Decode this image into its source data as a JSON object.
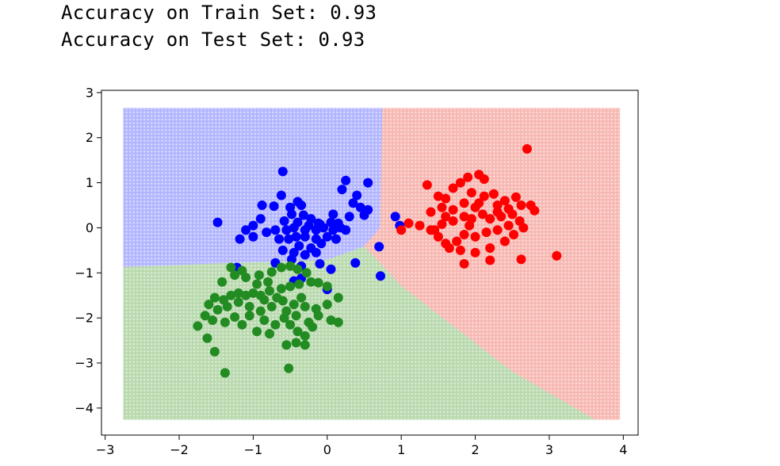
{
  "output": {
    "train_line": "Accuracy on Train Set: 0.93",
    "test_line": "Accuracy on Test Set: 0.93"
  },
  "chart_data": {
    "type": "scatter",
    "title": "",
    "xlabel": "",
    "ylabel": "",
    "xlim": [
      -3.05,
      4.2
    ],
    "ylim": [
      -4.6,
      3.05
    ],
    "grid": false,
    "legend": "none",
    "x_ticks": [
      -3,
      -2,
      -1,
      0,
      1,
      2,
      3,
      4
    ],
    "y_ticks": [
      -4,
      -3,
      -2,
      -1,
      0,
      1,
      2,
      3
    ],
    "x_tick_labels": [
      "−3",
      "−2",
      "−1",
      "0",
      "1",
      "2",
      "3",
      "4"
    ],
    "y_tick_labels": [
      "−4",
      "−3",
      "−2",
      "−1",
      "0",
      "1",
      "2",
      "3"
    ],
    "decision_regions": {
      "grid_x_range": [
        -2.75,
        3.95
      ],
      "grid_y_range": [
        -4.25,
        2.65
      ],
      "colors": {
        "blue": "#b3b6ff",
        "red": "#f7b8b2",
        "green": "#b9d9ae"
      },
      "blue_region": [
        [
          -2.75,
          2.65
        ],
        [
          0.75,
          2.65
        ],
        [
          0.72,
          0.0
        ],
        [
          0.5,
          -0.42
        ],
        [
          0.0,
          -0.72
        ],
        [
          -1.5,
          -0.8
        ],
        [
          -2.75,
          -0.88
        ]
      ],
      "red_region": [
        [
          0.75,
          2.65
        ],
        [
          3.95,
          2.65
        ],
        [
          3.95,
          -4.25
        ],
        [
          3.6,
          -4.25
        ],
        [
          2.5,
          -3.2
        ],
        [
          1.0,
          -1.3
        ],
        [
          0.5,
          -0.42
        ],
        [
          0.72,
          0.0
        ]
      ],
      "green_region": [
        [
          -2.75,
          -0.88
        ],
        [
          -1.5,
          -0.8
        ],
        [
          0.0,
          -0.72
        ],
        [
          0.5,
          -0.42
        ],
        [
          1.0,
          -1.3
        ],
        [
          2.5,
          -3.2
        ],
        [
          3.6,
          -4.25
        ],
        [
          -2.75,
          -4.25
        ]
      ]
    },
    "series": [
      {
        "color": "#0000ff",
        "points": [
          [
            -1.48,
            0.12
          ],
          [
            -0.6,
            1.25
          ],
          [
            -0.62,
            0.72
          ],
          [
            -0.4,
            0.58
          ],
          [
            -0.72,
            0.48
          ],
          [
            -0.48,
            0.3
          ],
          [
            -0.32,
            0.28
          ],
          [
            -0.22,
            0.2
          ],
          [
            -0.58,
            0.15
          ],
          [
            -0.4,
            0.12
          ],
          [
            -0.12,
            0.1
          ],
          [
            0.05,
            0.12
          ],
          [
            0.15,
            0.1
          ],
          [
            0.3,
            0.25
          ],
          [
            0.45,
            0.45
          ],
          [
            0.55,
            1.0
          ],
          [
            0.25,
            1.05
          ],
          [
            0.2,
            0.85
          ],
          [
            0.4,
            0.72
          ],
          [
            0.35,
            0.55
          ],
          [
            0.55,
            0.4
          ],
          [
            0.5,
            0.28
          ],
          [
            -0.88,
            0.5
          ],
          [
            -0.9,
            0.2
          ],
          [
            -1.0,
            0.05
          ],
          [
            -1.1,
            -0.05
          ],
          [
            -1.18,
            -0.25
          ],
          [
            -1.0,
            -0.2
          ],
          [
            -0.82,
            -0.1
          ],
          [
            -0.7,
            -0.05
          ],
          [
            -0.55,
            -0.05
          ],
          [
            -0.45,
            0.0
          ],
          [
            -0.3,
            -0.05
          ],
          [
            -0.15,
            -0.05
          ],
          [
            -0.05,
            0.0
          ],
          [
            0.08,
            -0.05
          ],
          [
            0.18,
            0.0
          ],
          [
            0.25,
            -0.05
          ],
          [
            -0.65,
            -0.25
          ],
          [
            -0.52,
            -0.25
          ],
          [
            -0.42,
            -0.2
          ],
          [
            -0.3,
            -0.2
          ],
          [
            -0.15,
            -0.25
          ],
          [
            0.0,
            -0.2
          ],
          [
            0.12,
            -0.25
          ],
          [
            -0.38,
            -0.4
          ],
          [
            -0.22,
            -0.45
          ],
          [
            -0.08,
            -0.35
          ],
          [
            -0.6,
            -0.5
          ],
          [
            -0.45,
            -0.55
          ],
          [
            -0.3,
            -0.6
          ],
          [
            -0.15,
            -0.55
          ],
          [
            -0.7,
            -0.78
          ],
          [
            -0.48,
            -0.7
          ],
          [
            -0.35,
            -0.85
          ],
          [
            -0.1,
            -0.8
          ],
          [
            0.05,
            -0.92
          ],
          [
            0.38,
            -0.78
          ],
          [
            0.72,
            -1.07
          ],
          [
            -1.22,
            -0.88
          ],
          [
            -0.35,
            -1.12
          ],
          [
            -0.45,
            -1.18
          ],
          [
            0.0,
            -1.37
          ],
          [
            0.92,
            0.25
          ],
          [
            0.98,
            0.05
          ],
          [
            0.7,
            -0.42
          ],
          [
            -0.25,
            0.05
          ],
          [
            -0.5,
            0.45
          ],
          [
            -0.35,
            0.5
          ],
          [
            -0.1,
            0.08
          ],
          [
            0.08,
            0.3
          ]
        ]
      },
      {
        "color": "#ff0000",
        "points": [
          [
            2.7,
            1.75
          ],
          [
            1.35,
            0.95
          ],
          [
            1.5,
            0.7
          ],
          [
            1.6,
            0.65
          ],
          [
            1.7,
            0.88
          ],
          [
            1.8,
            1.0
          ],
          [
            1.9,
            1.12
          ],
          [
            2.05,
            1.18
          ],
          [
            2.12,
            1.08
          ],
          [
            1.95,
            0.78
          ],
          [
            2.12,
            0.7
          ],
          [
            2.25,
            0.75
          ],
          [
            2.4,
            0.6
          ],
          [
            2.55,
            0.68
          ],
          [
            2.62,
            0.5
          ],
          [
            2.75,
            0.5
          ],
          [
            2.8,
            0.38
          ],
          [
            2.3,
            0.5
          ],
          [
            2.0,
            0.45
          ],
          [
            1.85,
            0.55
          ],
          [
            1.7,
            0.4
          ],
          [
            1.55,
            0.45
          ],
          [
            1.4,
            0.35
          ],
          [
            1.25,
            0.05
          ],
          [
            1.1,
            0.1
          ],
          [
            1.0,
            -0.05
          ],
          [
            1.4,
            -0.05
          ],
          [
            1.55,
            0.08
          ],
          [
            1.7,
            0.15
          ],
          [
            1.85,
            0.25
          ],
          [
            1.95,
            0.2
          ],
          [
            2.1,
            0.3
          ],
          [
            2.2,
            0.2
          ],
          [
            2.35,
            0.25
          ],
          [
            2.5,
            0.3
          ],
          [
            2.6,
            0.15
          ],
          [
            2.45,
            0.05
          ],
          [
            2.3,
            -0.05
          ],
          [
            2.15,
            -0.1
          ],
          [
            2.0,
            -0.2
          ],
          [
            1.85,
            -0.15
          ],
          [
            1.75,
            -0.3
          ],
          [
            1.6,
            -0.35
          ],
          [
            1.5,
            -0.2
          ],
          [
            1.45,
            -0.05
          ],
          [
            1.65,
            -0.45
          ],
          [
            1.8,
            -0.5
          ],
          [
            2.0,
            -0.55
          ],
          [
            2.2,
            -0.45
          ],
          [
            2.4,
            -0.3
          ],
          [
            2.52,
            -0.15
          ],
          [
            2.65,
            0.0
          ],
          [
            2.2,
            -0.72
          ],
          [
            2.62,
            -0.7
          ],
          [
            3.1,
            -0.62
          ],
          [
            1.85,
            -0.8
          ],
          [
            1.92,
            0.05
          ],
          [
            2.05,
            0.55
          ],
          [
            2.3,
            0.35
          ],
          [
            1.6,
            0.25
          ],
          [
            2.45,
            0.42
          ]
        ]
      },
      {
        "color": "#228b22",
        "points": [
          [
            -1.38,
            -3.22
          ],
          [
            -1.52,
            -2.75
          ],
          [
            -1.62,
            -2.45
          ],
          [
            -1.75,
            -2.18
          ],
          [
            -1.65,
            -1.95
          ],
          [
            -1.48,
            -1.82
          ],
          [
            -1.6,
            -1.7
          ],
          [
            -1.52,
            -1.55
          ],
          [
            -1.4,
            -1.6
          ],
          [
            -1.3,
            -1.5
          ],
          [
            -1.2,
            -1.45
          ],
          [
            -1.1,
            -1.5
          ],
          [
            -1.0,
            -1.45
          ],
          [
            -0.9,
            -1.5
          ],
          [
            -0.78,
            -1.4
          ],
          [
            -0.62,
            -1.35
          ],
          [
            -0.5,
            -1.3
          ],
          [
            -0.38,
            -1.25
          ],
          [
            -0.22,
            -1.2
          ],
          [
            -0.12,
            -1.22
          ],
          [
            0.0,
            -1.3
          ],
          [
            -1.42,
            -1.2
          ],
          [
            -1.25,
            -1.05
          ],
          [
            -1.1,
            -1.1
          ],
          [
            -0.92,
            -1.05
          ],
          [
            -0.75,
            -0.98
          ],
          [
            -0.62,
            -0.88
          ],
          [
            -0.5,
            -0.85
          ],
          [
            -0.4,
            -0.92
          ],
          [
            -0.28,
            -1.0
          ],
          [
            -1.3,
            -0.88
          ],
          [
            -1.15,
            -0.95
          ],
          [
            -0.95,
            -1.25
          ],
          [
            -0.8,
            -1.2
          ],
          [
            -1.35,
            -1.75
          ],
          [
            -1.2,
            -1.65
          ],
          [
            -1.05,
            -1.75
          ],
          [
            -0.9,
            -1.85
          ],
          [
            -0.75,
            -1.75
          ],
          [
            -0.6,
            -1.62
          ],
          [
            -0.45,
            -1.7
          ],
          [
            -0.3,
            -1.75
          ],
          [
            -0.15,
            -1.8
          ],
          [
            0.0,
            -1.7
          ],
          [
            0.15,
            -1.55
          ],
          [
            -1.38,
            -2.1
          ],
          [
            -1.25,
            -1.98
          ],
          [
            -1.05,
            -1.95
          ],
          [
            -0.85,
            -2.05
          ],
          [
            -0.7,
            -2.15
          ],
          [
            -0.58,
            -2.0
          ],
          [
            -0.42,
            -1.95
          ],
          [
            -0.25,
            -2.1
          ],
          [
            -0.12,
            -1.95
          ],
          [
            0.05,
            -2.05
          ],
          [
            -0.95,
            -2.3
          ],
          [
            -0.78,
            -2.35
          ],
          [
            -0.5,
            -2.15
          ],
          [
            -0.4,
            -2.3
          ],
          [
            -0.3,
            -2.4
          ],
          [
            -0.2,
            -2.2
          ],
          [
            -0.55,
            -2.6
          ],
          [
            -0.42,
            -2.55
          ],
          [
            -0.3,
            -2.6
          ],
          [
            -0.52,
            -3.12
          ],
          [
            0.15,
            -2.1
          ],
          [
            -1.15,
            -2.15
          ],
          [
            -0.55,
            -1.85
          ],
          [
            -0.68,
            -1.55
          ],
          [
            -0.85,
            -1.6
          ],
          [
            -0.35,
            -1.55
          ],
          [
            -1.55,
            -2.05
          ]
        ]
      }
    ]
  }
}
